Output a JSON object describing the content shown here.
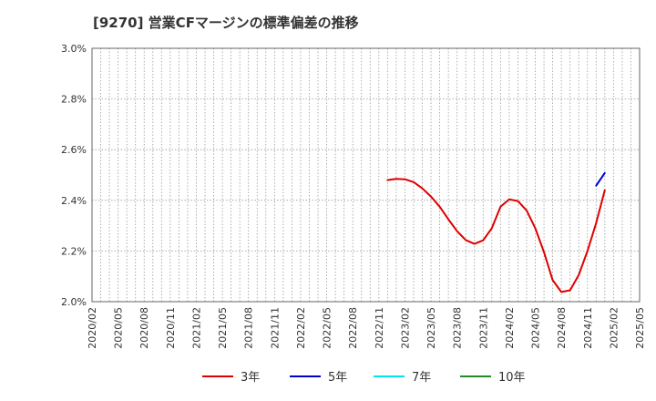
{
  "chart_data": {
    "type": "line",
    "title": "[9270]  営業CFマージンの標準偏差の推移",
    "xlabel": "",
    "ylabel": "",
    "ylim": [
      2.0,
      3.0
    ],
    "y_ticks": [
      2.0,
      2.2,
      2.4,
      2.6,
      2.8,
      3.0
    ],
    "y_tick_labels": [
      "2.0%",
      "2.2%",
      "2.4%",
      "2.6%",
      "2.8%",
      "3.0%"
    ],
    "x_tick_labels": [
      "2020/02",
      "2020/05",
      "2020/08",
      "2020/11",
      "2021/02",
      "2021/05",
      "2021/08",
      "2021/11",
      "2022/02",
      "2022/05",
      "2022/08",
      "2022/11",
      "2023/02",
      "2023/05",
      "2023/08",
      "2023/11",
      "2024/02",
      "2024/05",
      "2024/08",
      "2024/11",
      "2025/02",
      "2025/05"
    ],
    "grid": true,
    "legend_position": "bottom",
    "series": [
      {
        "name": "3年",
        "color": "#dd0000",
        "points": [
          [
            "2022/12",
            2.48
          ],
          [
            "2023/01",
            2.485
          ],
          [
            "2023/02",
            2.483
          ],
          [
            "2023/03",
            2.472
          ],
          [
            "2023/04",
            2.447
          ],
          [
            "2023/05",
            2.415
          ],
          [
            "2023/06",
            2.375
          ],
          [
            "2023/07",
            2.325
          ],
          [
            "2023/08",
            2.278
          ],
          [
            "2023/09",
            2.243
          ],
          [
            "2023/10",
            2.228
          ],
          [
            "2023/11",
            2.242
          ],
          [
            "2023/12",
            2.29
          ],
          [
            "2024/01",
            2.375
          ],
          [
            "2024/02",
            2.404
          ],
          [
            "2024/03",
            2.397
          ],
          [
            "2024/04",
            2.36
          ],
          [
            "2024/05",
            2.29
          ],
          [
            "2024/06",
            2.195
          ],
          [
            "2024/07",
            2.085
          ],
          [
            "2024/08",
            2.038
          ],
          [
            "2024/09",
            2.045
          ],
          [
            "2024/10",
            2.105
          ],
          [
            "2024/11",
            2.2
          ],
          [
            "2024/12",
            2.31
          ],
          [
            "2025/01",
            2.44
          ]
        ]
      },
      {
        "name": "5年",
        "color": "#0000cc",
        "points": [
          [
            "2024/12",
            2.458
          ],
          [
            "2025/01",
            2.508
          ]
        ]
      },
      {
        "name": "7年",
        "color": "#00e5ee",
        "points": []
      },
      {
        "name": "10年",
        "color": "#228b22",
        "points": []
      }
    ]
  }
}
